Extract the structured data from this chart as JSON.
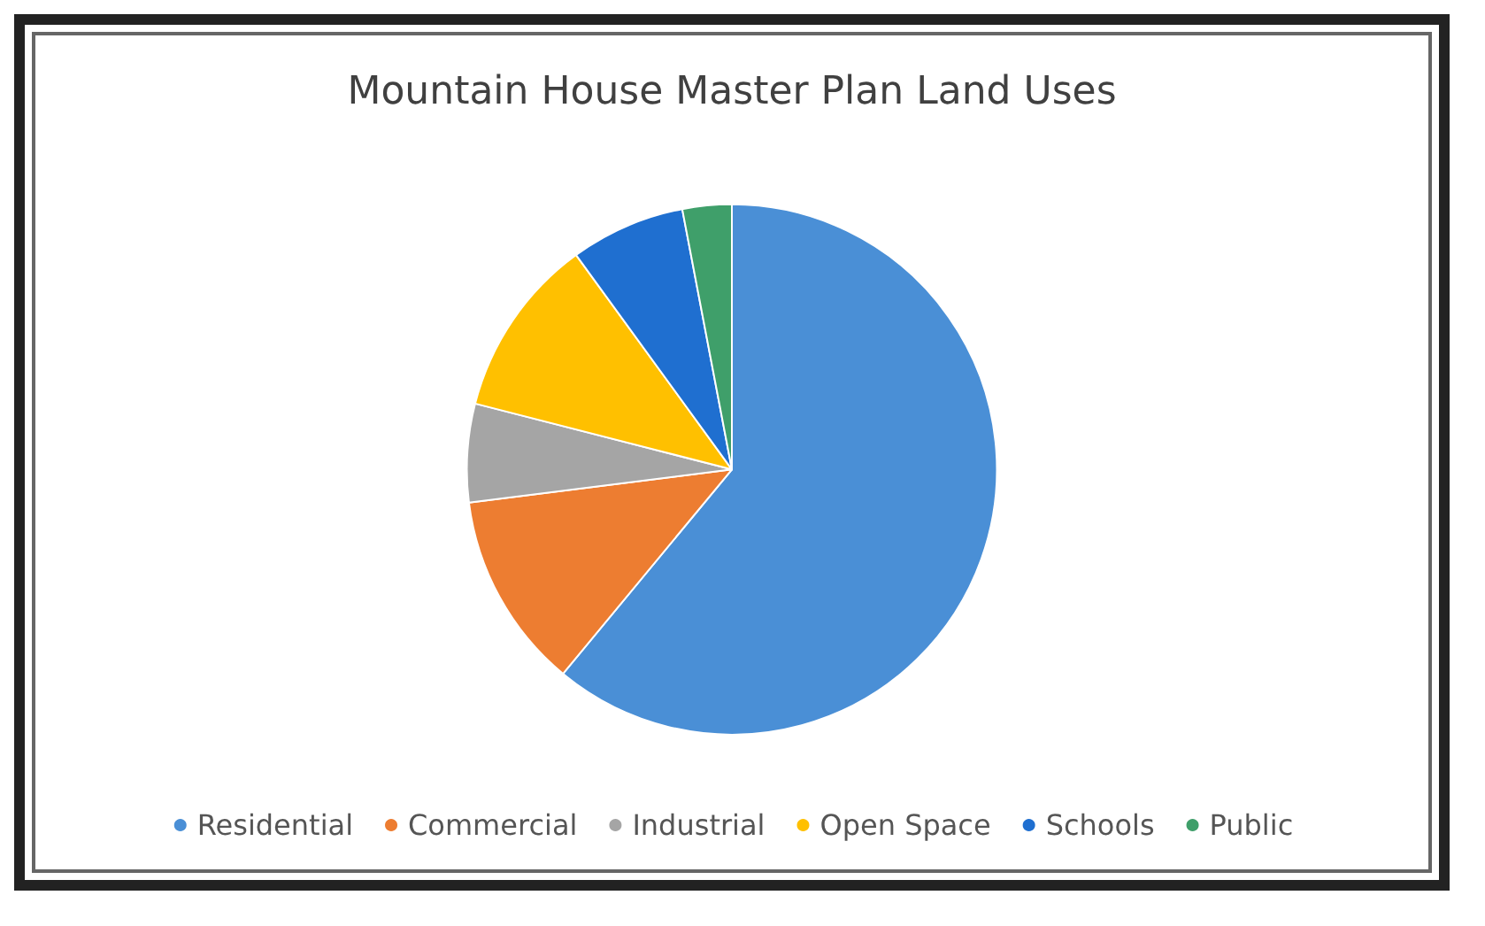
{
  "chart_data": {
    "type": "pie",
    "title": "Mountain House Master Plan Land Uses",
    "categories": [
      "Residential",
      "Commercial",
      "Industrial",
      "Open Space",
      "Schools",
      "Public"
    ],
    "values": [
      61,
      12,
      6,
      11,
      7,
      3
    ],
    "colors": [
      "#4a8fd6",
      "#ed7d31",
      "#a5a5a5",
      "#ffc000",
      "#1f6fd0",
      "#3f9f6a"
    ],
    "legend": "bottom"
  }
}
